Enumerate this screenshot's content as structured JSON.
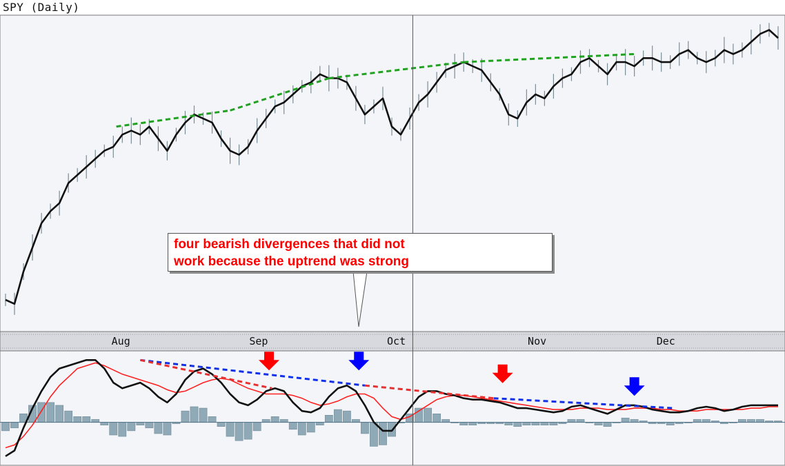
{
  "title": "SPY (Daily)",
  "annotation": {
    "line1": "four bearish divergences that did not",
    "line2": "work because the uptrend was strong"
  },
  "colors": {
    "price_line": "#111111",
    "bar_tick": "#7a8c96",
    "macd_line": "#111111",
    "signal_line": "#ff2020",
    "histogram": "#8fa9b6",
    "price_trend": "#22a022",
    "blue_trend": "#1030e8",
    "red_trend": "#e83030",
    "red_arrow": "#ff0000",
    "blue_arrow": "#0000ff",
    "panel_bg": "#f4f5f9"
  },
  "chart_data": [
    {
      "type": "line",
      "name": "price",
      "title": "SPY (Daily)",
      "x": [
        0,
        3,
        6,
        9,
        12,
        15,
        18,
        21,
        24,
        27,
        30,
        33,
        36,
        39,
        42,
        45,
        48,
        51,
        54,
        57,
        60,
        63,
        66,
        69,
        72,
        75,
        78,
        81,
        84,
        87,
        90,
        93,
        96,
        99,
        102,
        105,
        108,
        111,
        114,
        117,
        120,
        123,
        126,
        129,
        132,
        135,
        138,
        141,
        144,
        147,
        150,
        153,
        156,
        159,
        162,
        165,
        168,
        171,
        174,
        177,
        180,
        183,
        186,
        189,
        192,
        195,
        198,
        201,
        204,
        207,
        210,
        213,
        216,
        219,
        222,
        225,
        228,
        231,
        234,
        237,
        240,
        243,
        246,
        249,
        252,
        255,
        258
      ],
      "values": [
        41,
        40,
        48,
        54,
        60,
        63,
        65,
        70,
        72,
        74,
        76,
        78,
        79,
        82,
        83,
        82,
        84,
        81,
        78,
        82,
        85,
        87,
        86,
        85,
        81,
        78,
        77,
        79,
        83,
        86,
        89,
        90,
        92,
        94,
        95,
        97,
        96,
        96,
        95,
        91,
        87,
        89,
        91,
        84,
        82,
        86,
        90,
        92,
        95,
        98,
        99,
        100,
        99,
        98,
        95,
        92,
        87,
        86,
        90,
        92,
        91,
        94,
        96,
        97,
        100,
        101,
        99,
        97,
        100,
        100,
        99,
        101,
        101,
        100,
        100,
        102,
        103,
        101,
        100,
        101,
        103,
        102,
        103,
        105,
        107,
        108,
        106
      ],
      "ylim": [
        35,
        112
      ],
      "xlabel": "",
      "ylabel": ""
    },
    {
      "type": "line",
      "name": "macd",
      "x": [
        0,
        3,
        6,
        9,
        12,
        15,
        18,
        21,
        24,
        27,
        30,
        33,
        36,
        39,
        42,
        45,
        48,
        51,
        54,
        57,
        60,
        63,
        66,
        69,
        72,
        75,
        78,
        81,
        84,
        87,
        90,
        93,
        96,
        99,
        102,
        105,
        108,
        111,
        114,
        117,
        120,
        123,
        126,
        129,
        132,
        135,
        138,
        141,
        144,
        147,
        150,
        153,
        156,
        159,
        162,
        165,
        168,
        171,
        174,
        177,
        180,
        183,
        186,
        189,
        192,
        195,
        198,
        201,
        204,
        207,
        210,
        213,
        216,
        219,
        222,
        225,
        228,
        231,
        234,
        237,
        240,
        243,
        246,
        249,
        252,
        255,
        258
      ],
      "series": [
        {
          "key": "macd",
          "values": [
            -1.2,
            -1.0,
            -0.2,
            0.5,
            1.1,
            1.6,
            1.9,
            2.0,
            2.1,
            2.2,
            2.2,
            1.9,
            1.4,
            1.2,
            1.3,
            1.4,
            1.2,
            0.9,
            0.7,
            1.0,
            1.5,
            1.8,
            1.9,
            1.7,
            1.4,
            1.0,
            0.7,
            0.6,
            0.8,
            1.1,
            1.2,
            1.1,
            0.7,
            0.4,
            0.35,
            0.5,
            0.9,
            1.2,
            1.3,
            1.1,
            0.6,
            0.0,
            -0.3,
            -0.3,
            0.1,
            0.5,
            0.9,
            1.1,
            1.1,
            1.0,
            0.95,
            0.85,
            0.8,
            0.8,
            0.75,
            0.7,
            0.6,
            0.5,
            0.5,
            0.45,
            0.4,
            0.35,
            0.4,
            0.55,
            0.6,
            0.5,
            0.4,
            0.3,
            0.45,
            0.6,
            0.6,
            0.55,
            0.45,
            0.4,
            0.35,
            0.35,
            0.4,
            0.5,
            0.55,
            0.5,
            0.4,
            0.45,
            0.55,
            0.6,
            0.6,
            0.6,
            0.6
          ]
        },
        {
          "key": "signal",
          "values": [
            -0.9,
            -0.8,
            -0.5,
            -0.1,
            0.4,
            0.9,
            1.3,
            1.6,
            1.9,
            2.0,
            2.1,
            2.0,
            1.85,
            1.7,
            1.6,
            1.5,
            1.4,
            1.3,
            1.15,
            1.05,
            1.1,
            1.25,
            1.4,
            1.5,
            1.55,
            1.5,
            1.35,
            1.2,
            1.1,
            1.0,
            1.0,
            1.0,
            0.95,
            0.85,
            0.7,
            0.6,
            0.65,
            0.75,
            0.9,
            1.0,
            1.0,
            0.85,
            0.5,
            0.2,
            0.1,
            0.2,
            0.4,
            0.6,
            0.8,
            0.9,
            0.95,
            0.95,
            0.9,
            0.85,
            0.8,
            0.75,
            0.7,
            0.65,
            0.6,
            0.55,
            0.5,
            0.45,
            0.45,
            0.45,
            0.5,
            0.5,
            0.5,
            0.45,
            0.45,
            0.45,
            0.5,
            0.5,
            0.5,
            0.45,
            0.45,
            0.4,
            0.4,
            0.4,
            0.45,
            0.45,
            0.45,
            0.45,
            0.45,
            0.5,
            0.5,
            0.55,
            0.55
          ]
        },
        {
          "key": "histogram",
          "values": [
            -0.3,
            -0.2,
            0.3,
            0.6,
            0.7,
            0.7,
            0.6,
            0.4,
            0.2,
            0.2,
            0.1,
            -0.1,
            -0.45,
            -0.5,
            -0.3,
            -0.1,
            -0.2,
            -0.4,
            -0.45,
            -0.05,
            0.4,
            0.55,
            0.5,
            0.2,
            -0.15,
            -0.5,
            -0.65,
            -0.6,
            -0.3,
            0.1,
            0.2,
            0.1,
            -0.25,
            -0.45,
            -0.35,
            -0.1,
            0.25,
            0.45,
            0.4,
            0.1,
            -0.4,
            -0.85,
            -0.8,
            -0.5,
            0.0,
            0.3,
            0.5,
            0.5,
            0.3,
            0.1,
            0.0,
            -0.1,
            -0.1,
            -0.05,
            -0.05,
            -0.05,
            -0.1,
            -0.15,
            -0.1,
            -0.1,
            -0.1,
            -0.1,
            -0.05,
            0.1,
            0.1,
            0.0,
            -0.1,
            -0.15,
            0.0,
            0.15,
            0.1,
            0.05,
            -0.05,
            -0.05,
            -0.1,
            -0.05,
            0.0,
            0.1,
            0.1,
            0.05,
            -0.05,
            0.0,
            0.1,
            0.1,
            0.1,
            0.05,
            0.05
          ]
        }
      ],
      "ylim": [
        -1.4,
        2.5
      ],
      "xlabel": "",
      "ylabel": ""
    }
  ],
  "months": [
    {
      "label": "Aug",
      "x": 40
    },
    {
      "label": "Sep",
      "x": 86
    },
    {
      "label": "Oct",
      "x": 132
    },
    {
      "label": "Nov",
      "x": 179
    },
    {
      "label": "Dec",
      "x": 222
    }
  ],
  "cursor_x": 136,
  "price_trendlines": [
    {
      "from": [
        37,
        84
      ],
      "to": [
        75,
        88
      ]
    },
    {
      "from": [
        75,
        88
      ],
      "to": [
        108,
        96
      ]
    },
    {
      "from": [
        108,
        96
      ],
      "to": [
        153,
        100
      ]
    },
    {
      "from": [
        153,
        100
      ],
      "to": [
        210,
        102
      ]
    }
  ],
  "macd_trendlines": [
    {
      "color": "blue",
      "from": [
        45,
        2.2
      ],
      "to": [
        120,
        1.3
      ]
    },
    {
      "color": "red",
      "from": [
        45,
        2.2
      ],
      "to": [
        89,
        1.2
      ]
    },
    {
      "color": "red",
      "from": [
        120,
        1.3
      ],
      "to": [
        163,
        0.85
      ]
    },
    {
      "color": "blue",
      "from": [
        163,
        0.85
      ],
      "to": [
        223,
        0.5
      ]
    }
  ],
  "arrows": [
    {
      "color": "red",
      "x": 88,
      "y": 2.2
    },
    {
      "color": "blue",
      "x": 118,
      "y": 2.2
    },
    {
      "color": "red",
      "x": 166,
      "y": 1.75
    },
    {
      "color": "blue",
      "x": 210,
      "y": 1.3
    }
  ]
}
